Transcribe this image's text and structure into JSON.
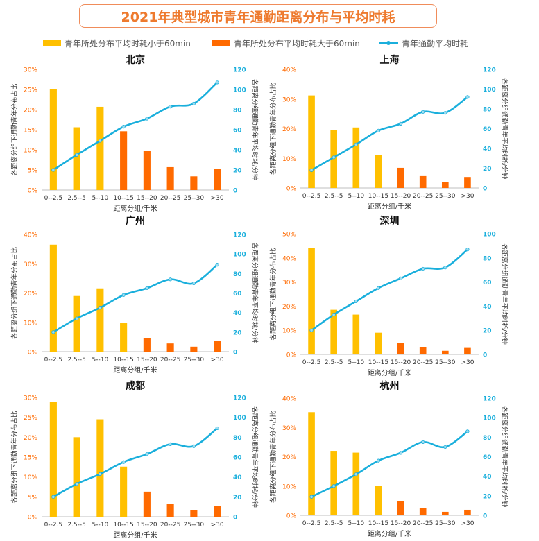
{
  "title": "2021年典型城市青年通勤距离分布与平均时耗",
  "colors": {
    "under60": "#FFC000",
    "over60": "#FF6A00",
    "line": "#1AAFDC",
    "title": "#EE7A2E",
    "axis_left": "#FF6A00",
    "axis_right": "#1AAFDC"
  },
  "legend": [
    {
      "label": "青年所处分布平均时耗小于60min",
      "kind": "under60"
    },
    {
      "label": "青年所处分布平均时耗大于60min",
      "kind": "over60"
    },
    {
      "label": "青年通勤平均时耗",
      "kind": "line"
    }
  ],
  "chart_data": [
    {
      "type": "bar",
      "title": "北京",
      "categories": [
        "0--2.5",
        "2.5--5",
        "5--10",
        "10--15",
        "15--20",
        "20--25",
        "25--30",
        ">30"
      ],
      "xlabel": "距离分组/千米",
      "ylabel": "各距离分组下通勤青年分布占比",
      "y2label": "各距离分组通勤青年平均时耗/分钟",
      "ylim": [
        0,
        30
      ],
      "ytick_step": 5,
      "y2lim": [
        0,
        120
      ],
      "y2tick_step": 20,
      "bar_values": [
        25,
        15.6,
        20.7,
        14.6,
        9.7,
        5.7,
        3.4,
        5.2
      ],
      "over60_flags": [
        false,
        false,
        false,
        true,
        true,
        true,
        true,
        true
      ],
      "line_values": [
        20,
        35,
        49,
        63,
        71,
        83,
        86,
        107
      ]
    },
    {
      "type": "bar",
      "title": "上海",
      "categories": [
        "0--2.5",
        "2.5--5",
        "5--10",
        "10--15",
        "15--20",
        "20--25",
        "25--30",
        ">30"
      ],
      "xlabel": "距离分组/千米",
      "ylabel": "各距离分组下通勤青年分布占比",
      "y2label": "各距离分组通勤青年平均时耗/分钟",
      "ylim": [
        0,
        40
      ],
      "ytick_step": 10,
      "y2lim": [
        0,
        120
      ],
      "y2tick_step": 20,
      "bar_values": [
        31.2,
        19.5,
        20.4,
        11,
        6.8,
        4,
        2.1,
        3.7
      ],
      "over60_flags": [
        false,
        false,
        false,
        false,
        true,
        true,
        true,
        true
      ],
      "line_values": [
        18,
        31,
        44,
        58,
        65,
        77,
        76,
        92
      ]
    },
    {
      "type": "bar",
      "title": "广州",
      "categories": [
        "0--2.5",
        "2.5--5",
        "5--10",
        "10--15",
        "15--20",
        "20--25",
        "25--30",
        ">30"
      ],
      "xlabel": "距离分组/千米",
      "ylabel": "各距离分组下通勤青年分布占比",
      "y2label": "各距离分组通勤青年平均时耗/分钟",
      "ylim": [
        0,
        40
      ],
      "ytick_step": 10,
      "y2lim": [
        0,
        120
      ],
      "y2tick_step": 20,
      "bar_values": [
        36.5,
        19,
        21.6,
        9.7,
        4.5,
        2.8,
        1.7,
        3.7
      ],
      "over60_flags": [
        false,
        false,
        false,
        false,
        true,
        true,
        true,
        true
      ],
      "line_values": [
        20,
        34,
        45,
        58,
        65,
        74,
        70,
        89
      ]
    },
    {
      "type": "bar",
      "title": "深圳",
      "categories": [
        "0--2.5",
        "2.5--5",
        "5--10",
        "10--15",
        "15--20",
        "20--25",
        "25--30",
        ">30"
      ],
      "xlabel": "距离分组/千米",
      "ylabel": "各距离分组下通勤青年分布占比",
      "y2label": "各距离分组通勤青年平均时耗/分钟",
      "ylim": [
        0,
        50
      ],
      "ytick_step": 10,
      "y2lim": [
        0,
        100
      ],
      "y2tick_step": 20,
      "bar_values": [
        44,
        18.5,
        16.5,
        9,
        4.8,
        3,
        1.5,
        2.7
      ],
      "over60_flags": [
        false,
        false,
        false,
        false,
        true,
        true,
        true,
        true
      ],
      "line_values": [
        20,
        33,
        44,
        55,
        63,
        71,
        72,
        87
      ]
    },
    {
      "type": "bar",
      "title": "成都",
      "categories": [
        "0--2.5",
        "2.5--5",
        "5--10",
        "10--15",
        "15--20",
        "20--25",
        "25--30",
        ">30"
      ],
      "xlabel": "距离分组/千米",
      "ylabel": "各距离分组下通勤青年分布占比",
      "y2label": "各距离分组通勤青年平均时耗/分钟",
      "ylim": [
        0,
        30
      ],
      "ytick_step": 5,
      "y2lim": [
        0,
        120
      ],
      "y2tick_step": 20,
      "bar_values": [
        28.8,
        20,
        24.5,
        12.6,
        6.3,
        3.3,
        1.6,
        2.7
      ],
      "over60_flags": [
        false,
        false,
        false,
        false,
        true,
        true,
        true,
        true
      ],
      "line_values": [
        20,
        33,
        43,
        55,
        63,
        73,
        71,
        89
      ]
    },
    {
      "type": "bar",
      "title": "杭州",
      "categories": [
        "0--2.5",
        "2.5--5",
        "5--10",
        "10--15",
        "15--20",
        "20--25",
        "25--30",
        ">30"
      ],
      "xlabel": "距离分组/千米",
      "ylabel": "各距离分组下通勤青年分布占比",
      "y2label": "各距离分组通勤青年平均时耗/分钟",
      "ylim": [
        0,
        40
      ],
      "ytick_step": 10,
      "y2lim": [
        0,
        120
      ],
      "y2tick_step": 20,
      "bar_values": [
        35.2,
        22,
        21.4,
        10,
        4.9,
        2.6,
        1.2,
        1.9
      ],
      "over60_flags": [
        false,
        false,
        false,
        false,
        true,
        true,
        true,
        true
      ],
      "line_values": [
        19,
        30,
        42,
        56,
        64,
        75,
        70,
        86
      ]
    }
  ]
}
